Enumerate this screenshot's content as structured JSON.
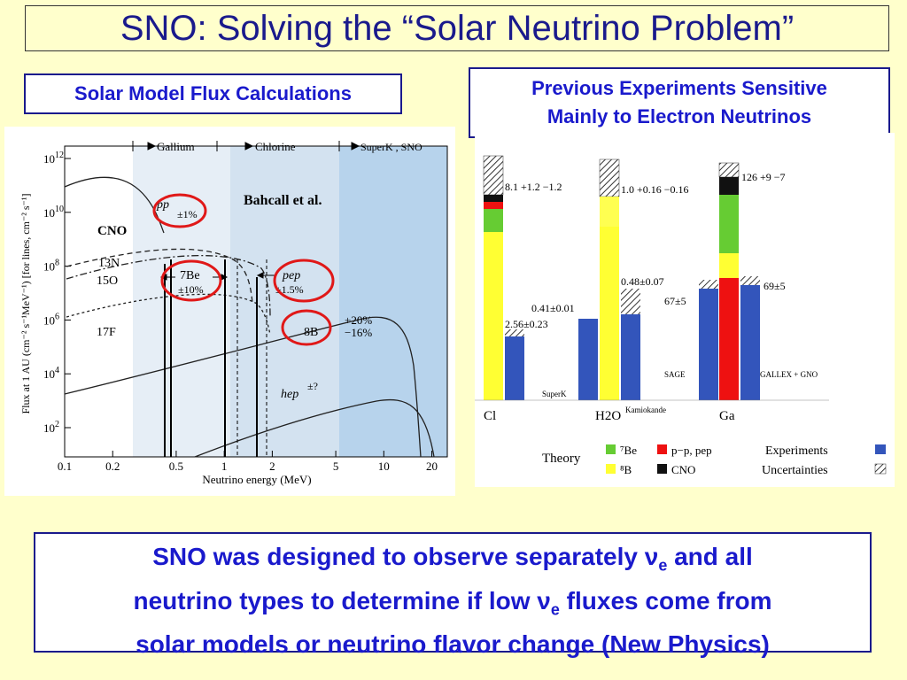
{
  "title": "SNO: Solving the “Solar Neutrino Problem”",
  "left_caption": "Solar Model Flux Calculations",
  "right_caption": [
    "Previous Experiments Sensitive",
    "Mainly to Electron Neutrinos"
  ],
  "bottom": {
    "line1_a": "SNO was designed to observe separately ",
    "line1_b": " and all",
    "line2_a": "neutrino types to determine if low ",
    "line2_b": " fluxes come from",
    "line3": "solar models or neutrino flavor change (New Physics)",
    "nu": "ν",
    "sub": "e"
  },
  "chart_data": [
    {
      "type": "line",
      "ylabel": "Flux at 1 AU (cm⁻² s⁻¹MeV⁻¹) [for lines, cm⁻² s⁻¹]",
      "xlabel": "Neutrino energy (MeV)",
      "xscale": "log",
      "yscale": "log",
      "x_ticks": [
        "0.1",
        "0.2",
        "0.5",
        "1",
        "2",
        "5",
        "10",
        "20"
      ],
      "y_ticks": [
        "10^12",
        "10^10",
        "10^8",
        "10^6",
        "10^4",
        "10^2"
      ],
      "bands": [
        "Gallium",
        "Chlorine",
        "SuperK , SNO"
      ],
      "annotations": {
        "bahcall": "Bahcall et al.",
        "cno": "CNO",
        "pp": "pp",
        "pp_unc": "±1%",
        "n13": "13N",
        "o15": "15O",
        "f17": "17F",
        "be7": "7Be",
        "be7_unc": "±10%",
        "pep": "pep",
        "pep_unc": "±1.5%",
        "b8": "8B",
        "b8_unc1": "+20%",
        "b8_unc2": "−16%",
        "hep": "hep",
        "hep_unc": "±?"
      }
    },
    {
      "type": "bar",
      "categories": [
        "Cl",
        "H2O",
        "Ga"
      ],
      "experiments": [
        {
          "category": "Cl",
          "value": "2.56±0.23",
          "theory": "8.1 +1.2 −1.2"
        },
        {
          "category": "H2O",
          "value": "0.48±0.07",
          "value2": "0.41±0.01",
          "theory": "1.0 +0.16 −0.16"
        },
        {
          "category": "Ga",
          "value": "69±5",
          "value2": "67±5",
          "theory": "126 +9 −7"
        }
      ],
      "detector_labels": [
        "SuperK",
        "Kamiokande",
        "SAGE",
        "GALLEX + GNO"
      ],
      "legend": {
        "theory": "Theory",
        "be7": "⁷Be",
        "b8": "⁸B",
        "pp": "p−p, pep",
        "cno": "CNO",
        "experiments": "Experiments",
        "uncertainties": "Uncertainties"
      },
      "colors": {
        "be7": "#66cc33",
        "b8": "#ffff33",
        "pp": "#ee1111",
        "cno": "#111111",
        "exp": "#3355bb"
      }
    }
  ]
}
